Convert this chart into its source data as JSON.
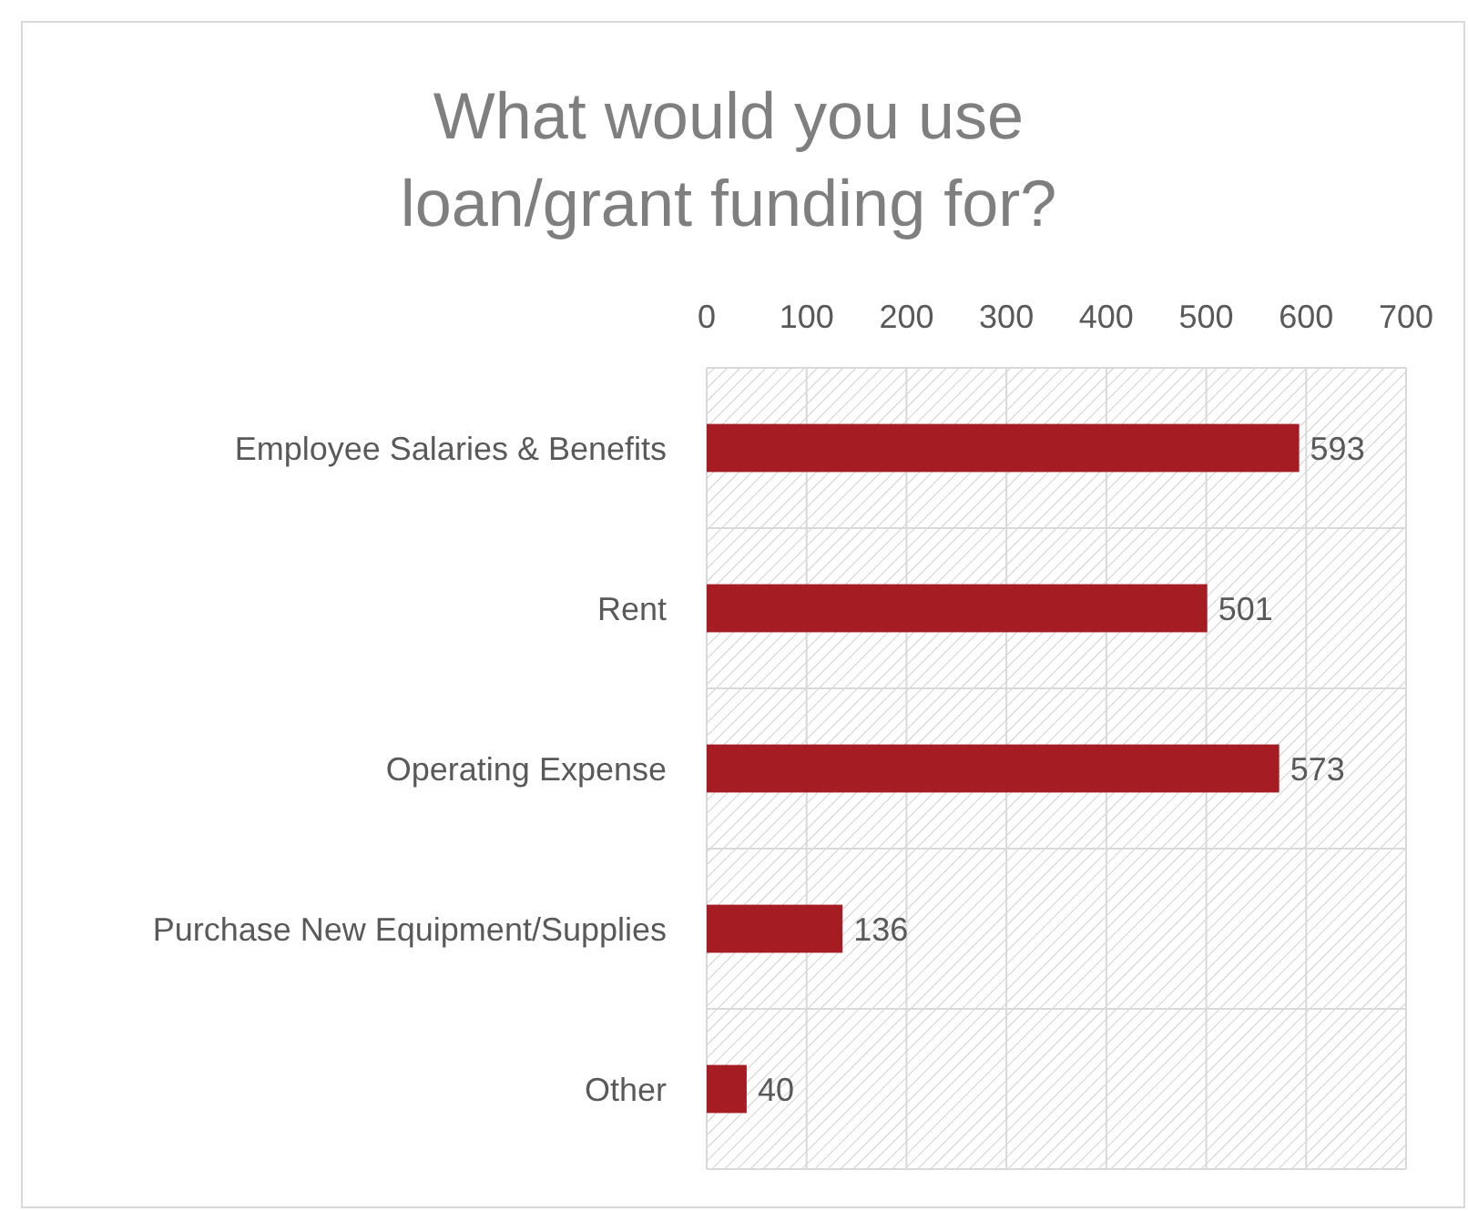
{
  "chart_data": {
    "type": "bar",
    "orientation": "horizontal",
    "title": "What would you use loan/grant funding for?",
    "categories": [
      "Employee Salaries & Benefits",
      "Rent",
      "Operating Expense",
      "Purchase New Equipment/Supplies",
      "Other"
    ],
    "values": [
      593,
      501,
      573,
      136,
      40
    ],
    "color": "#a51c22",
    "xlim": [
      0,
      700
    ],
    "xticks": [
      0,
      100,
      200,
      300,
      400,
      500,
      600,
      700
    ],
    "grid": true,
    "data_labels": true
  }
}
